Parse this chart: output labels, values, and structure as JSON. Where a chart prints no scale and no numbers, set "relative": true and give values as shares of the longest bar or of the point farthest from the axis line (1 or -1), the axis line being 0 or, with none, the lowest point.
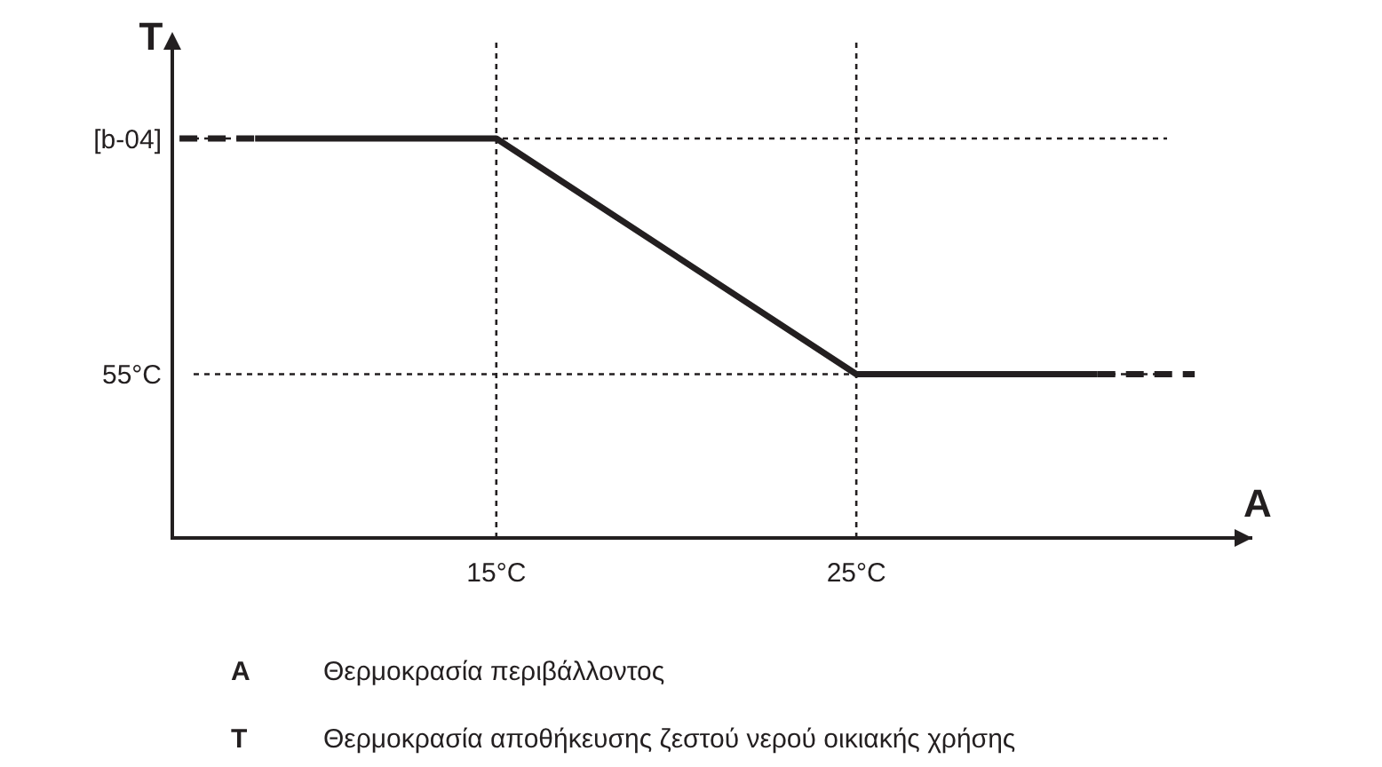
{
  "chart_data": {
    "type": "line",
    "relative": true,
    "xlabel": "A",
    "ylabel": "T",
    "xlim": [
      6,
      36
    ],
    "xticks": [
      {
        "value": 15,
        "label": "15°C"
      },
      {
        "value": 25,
        "label": "25°C"
      }
    ],
    "series": [
      {
        "color": "#231f20",
        "x": [
          8.3,
          15,
          25,
          31.7
        ],
        "values": [
          1,
          1,
          0.41,
          0.41
        ],
        "line_style": "solid"
      },
      {
        "color": "#231f20",
        "x": [
          6.2,
          8.3
        ],
        "values": [
          1,
          1
        ],
        "line_style": "dashed"
      },
      {
        "color": "#231f20",
        "x": [
          31.7,
          34.4
        ],
        "values": [
          0.41,
          0.41
        ],
        "line_style": "dashed"
      }
    ],
    "ref_lines": [
      {
        "axis": "y",
        "value": 1,
        "label": "[b-04]",
        "line_style": "dotted"
      },
      {
        "axis": "y",
        "value": 0.41,
        "label": "55°C",
        "line_style": "dotted"
      },
      {
        "axis": "x",
        "value": 15,
        "line_style": "dotted"
      },
      {
        "axis": "x",
        "value": 25,
        "line_style": "dotted"
      }
    ],
    "annotations": [
      "A Θερμοκρασία περιβάλλοντος",
      "T Θερμοκρασία αποθήκευσης ζεστού νερού οικιακής χρήσης"
    ]
  }
}
